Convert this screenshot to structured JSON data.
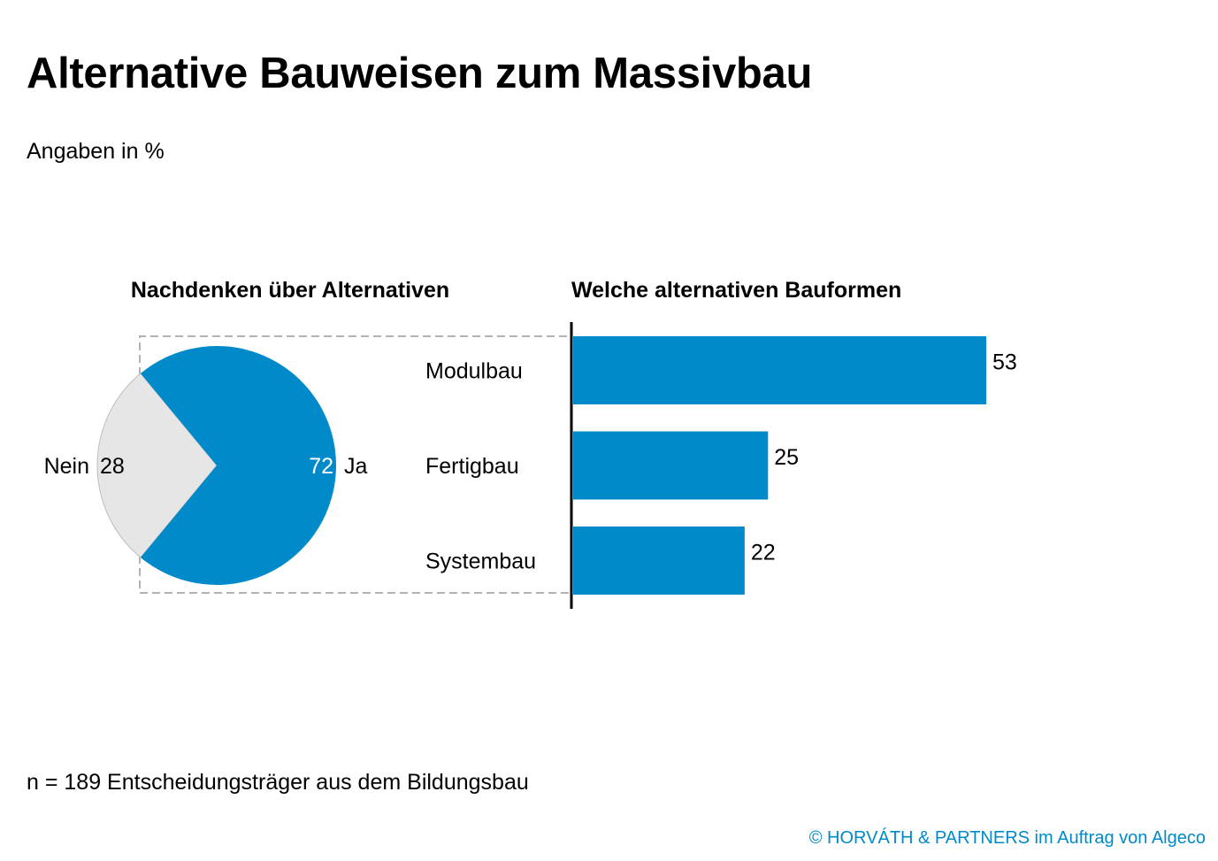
{
  "title": "Alternative Bauweisen zum Massivbau",
  "subtitle": "Angaben in %",
  "footnote": "n = 189 Entscheidungsträger aus dem Bildungsbau",
  "source": "© HORVÁTH & PARTNERS im Auftrag von Algeco",
  "colors": {
    "accent": "#008AC9",
    "neutral": "#E6E6E6",
    "source_text": "#008AC9"
  },
  "chart_data": [
    {
      "type": "pie",
      "subtitle": "Nachdenken über Alternativen",
      "slices": [
        {
          "label": "Ja",
          "value": 72,
          "color": "#008AC9"
        },
        {
          "label": "Nein",
          "value": 28,
          "color": "#E6E6E6"
        }
      ]
    },
    {
      "type": "bar",
      "orientation": "horizontal",
      "subtitle": "Welche alternativen Bauformen",
      "categories": [
        "Modulbau",
        "Fertigbau",
        "Systembau"
      ],
      "values": [
        53,
        25,
        22
      ],
      "color": "#008AC9",
      "xlim": [
        0,
        100
      ]
    }
  ]
}
